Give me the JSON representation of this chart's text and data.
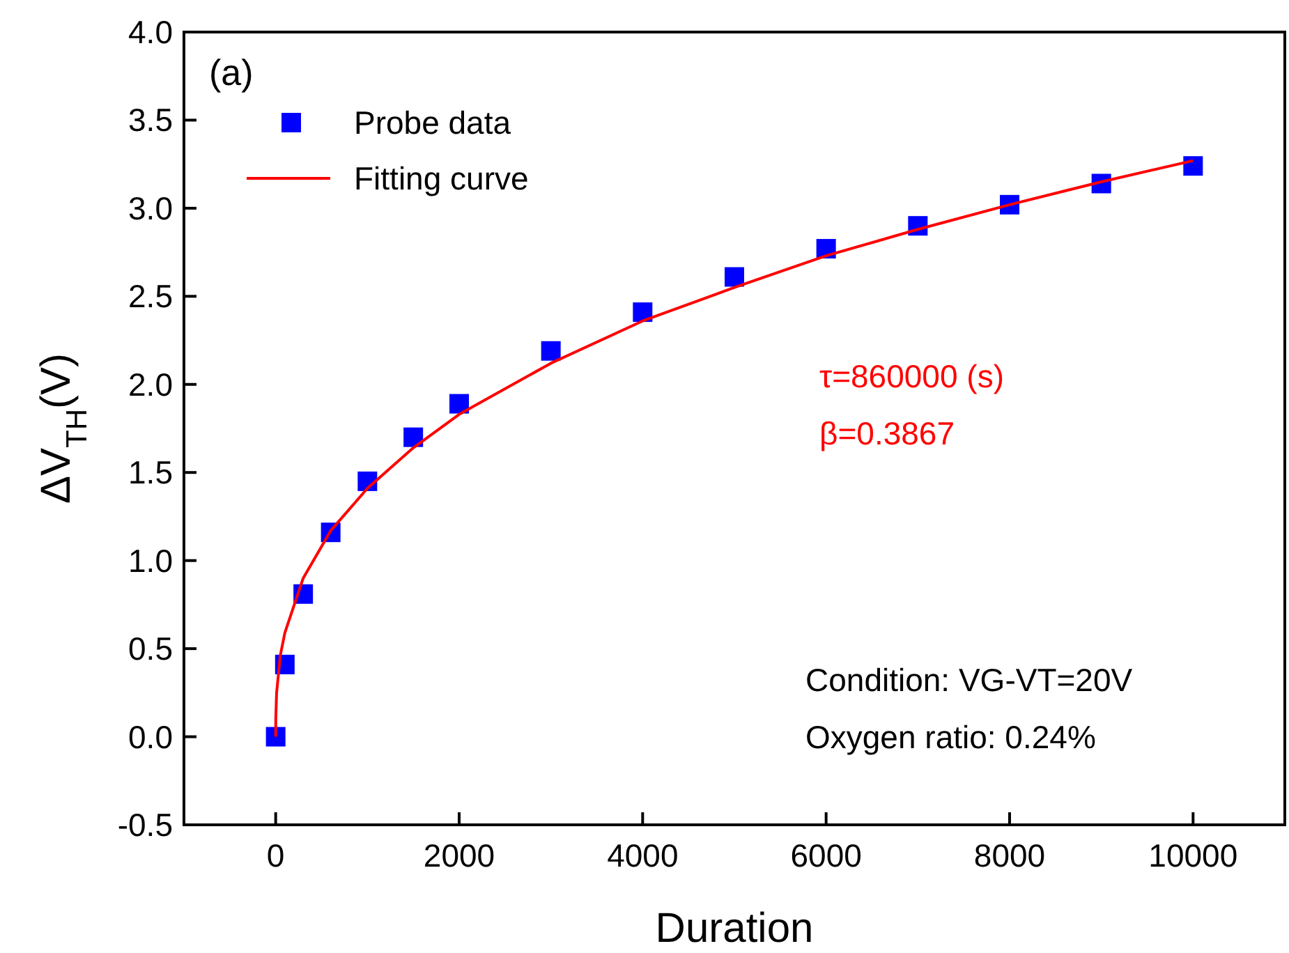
{
  "chart_data": {
    "type": "scatter",
    "xlabel": "Duration",
    "ylabel": "ΔV$_{TH}$(V)",
    "xlim": [
      -1000,
      11000
    ],
    "xticks": [
      0,
      2000,
      4000,
      6000,
      8000,
      10000
    ],
    "ylim": [
      -0.5,
      4.0
    ],
    "yticks": [
      -0.5,
      {
        "value": 0,
        "label": "0.0"
      },
      0.5,
      {
        "value": 1,
        "label": "1.0"
      },
      1.5,
      {
        "value": 2,
        "label": "2.0"
      },
      2.5,
      {
        "value": 3,
        "label": "3.0"
      },
      3.5,
      {
        "value": 4,
        "label": "4.0"
      }
    ],
    "x": [
      0,
      100,
      300,
      600,
      1000,
      1500,
      2000,
      3000,
      4000,
      5000,
      6000,
      7000,
      8000,
      9000,
      10000
    ],
    "series": [
      {
        "name": "Probe data",
        "color": "#0000ff",
        "marker": "square",
        "values": [
          0,
          0.41,
          0.81,
          1.16,
          1.45,
          1.7,
          1.89,
          2.19,
          2.41,
          2.61,
          2.77,
          2.9,
          3.02,
          3.14,
          3.24
        ]
      },
      {
        "name": "Fitting curve",
        "type": "line",
        "color": "#ff0000",
        "marker": "none",
        "line_style": "solid",
        "x": [
          0,
          1,
          10,
          50,
          100,
          300,
          600,
          1000,
          1500,
          2000,
          3000,
          4000,
          5000,
          6000,
          7000,
          8000,
          9000,
          10000
        ],
        "values": [
          0,
          0.1,
          0.25,
          0.46,
          0.59,
          0.9,
          1.17,
          1.41,
          1.64,
          1.83,
          2.12,
          2.36,
          2.55,
          2.73,
          2.88,
          3.02,
          3.15,
          3.27
        ]
      }
    ],
    "annotations": [
      "(a)",
      "τ=860000 (s)",
      "β=0.3867",
      "Condition: VG-VT=20V",
      "Oxygen ratio: 0.24%"
    ],
    "legend": "top left",
    "grid": false
  }
}
